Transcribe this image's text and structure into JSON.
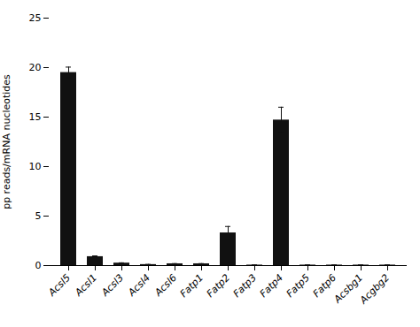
{
  "chart_data": {
    "type": "bar",
    "ylabel": "pp reads/mRNA nucleotides",
    "categories": [
      "Acsl5",
      "Acsl1",
      "Acsl3",
      "Acsl4",
      "Acsl6",
      "Fatp1",
      "Fatp2",
      "Fatp3",
      "Fatp4",
      "Fatp5",
      "Fatp6",
      "Acsbg1",
      "Acgbg2"
    ],
    "values": [
      19.5,
      0.9,
      0.25,
      0.1,
      0.18,
      0.18,
      3.3,
      0.05,
      14.7,
      0.05,
      0.05,
      0.05,
      0.05
    ],
    "errors": [
      0.55,
      0.08,
      0.03,
      0.02,
      0.02,
      0.02,
      0.65,
      0.02,
      1.3,
      0.02,
      0.02,
      0.02,
      0.02
    ],
    "color": "#111111",
    "ylim": [
      0,
      25
    ],
    "yticks": [
      0,
      5,
      10,
      15,
      20,
      25
    ],
    "grid": false
  }
}
